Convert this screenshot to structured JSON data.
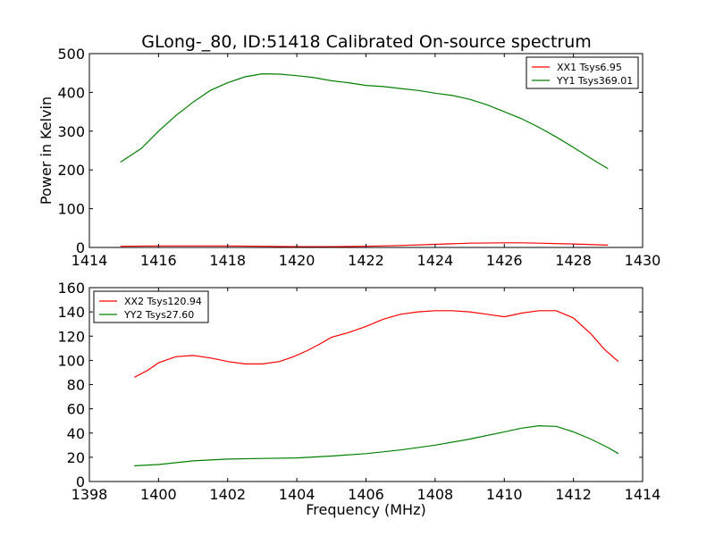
{
  "title": "GLong-_80, ID:51418 Calibrated On-source spectrum",
  "chart_data": [
    {
      "type": "line",
      "ylabel": "Power in Kelvin",
      "xlabel": "",
      "xlim": [
        1414,
        1430
      ],
      "ylim": [
        0,
        500
      ],
      "xticks": [
        1414,
        1416,
        1418,
        1420,
        1422,
        1424,
        1426,
        1428,
        1430
      ],
      "yticks": [
        0,
        100,
        200,
        300,
        400,
        500
      ],
      "legend_position": "top-right",
      "series": [
        {
          "name": "XX1 Tsys6.95",
          "color": "#ff0000",
          "x": [
            1414.9,
            1416,
            1417,
            1418,
            1419,
            1420,
            1421,
            1422,
            1423,
            1424,
            1425,
            1426,
            1426.5,
            1427,
            1428,
            1429
          ],
          "y": [
            3,
            4,
            4,
            4,
            3,
            2,
            2,
            3,
            5,
            8,
            11,
            12,
            12,
            11,
            9,
            6
          ]
        },
        {
          "name": "YY1 Tsys369.01",
          "color": "#008000",
          "x": [
            1414.9,
            1415.5,
            1416,
            1416.5,
            1417,
            1417.5,
            1418,
            1418.5,
            1419,
            1419.5,
            1420,
            1420.5,
            1421,
            1421.5,
            1422,
            1422.5,
            1423,
            1423.5,
            1424,
            1424.5,
            1425,
            1425.5,
            1426,
            1426.5,
            1427,
            1427.5,
            1428,
            1428.5,
            1429
          ],
          "y": [
            220,
            255,
            300,
            340,
            375,
            405,
            425,
            440,
            448,
            447,
            443,
            438,
            430,
            425,
            418,
            415,
            410,
            405,
            398,
            392,
            382,
            368,
            350,
            332,
            310,
            285,
            258,
            230,
            203
          ]
        }
      ]
    },
    {
      "type": "line",
      "ylabel": "",
      "xlabel": "Frequency (MHz)",
      "xlim": [
        1398,
        1414
      ],
      "ylim": [
        0,
        160
      ],
      "xticks": [
        1398,
        1400,
        1402,
        1404,
        1406,
        1408,
        1410,
        1412,
        1414
      ],
      "yticks": [
        0,
        20,
        40,
        60,
        80,
        100,
        120,
        140,
        160
      ],
      "legend_position": "top-left",
      "series": [
        {
          "name": "XX2 Tsys120.94",
          "color": "#ff0000",
          "x": [
            1399.3,
            1399.7,
            1400,
            1400.5,
            1401,
            1401.5,
            1402,
            1402.5,
            1403,
            1403.5,
            1403.9,
            1404.3,
            1404.7,
            1405,
            1405.5,
            1406,
            1406.5,
            1407,
            1407.5,
            1408,
            1408.5,
            1409,
            1409.5,
            1410,
            1410.5,
            1411,
            1411.5,
            1412,
            1412.5,
            1412.9,
            1413.3
          ],
          "y": [
            86,
            92,
            98,
            103,
            104,
            102,
            99,
            97,
            97,
            99,
            103,
            108,
            114,
            119,
            123,
            128,
            134,
            138,
            140,
            141,
            141,
            140,
            138,
            136,
            139,
            141,
            141,
            135,
            122,
            109,
            99
          ]
        },
        {
          "name": "YY2 Tsys27.60",
          "color": "#008000",
          "x": [
            1399.3,
            1400,
            1401,
            1402,
            1403,
            1404,
            1405,
            1406,
            1407,
            1408,
            1409,
            1410,
            1410.5,
            1411,
            1411.5,
            1412,
            1412.5,
            1413,
            1413.3
          ],
          "y": [
            13,
            14,
            17,
            18.5,
            19,
            19.5,
            21,
            23,
            26,
            30,
            35,
            41,
            44,
            46,
            45.5,
            41,
            35,
            28,
            23
          ]
        }
      ]
    }
  ]
}
